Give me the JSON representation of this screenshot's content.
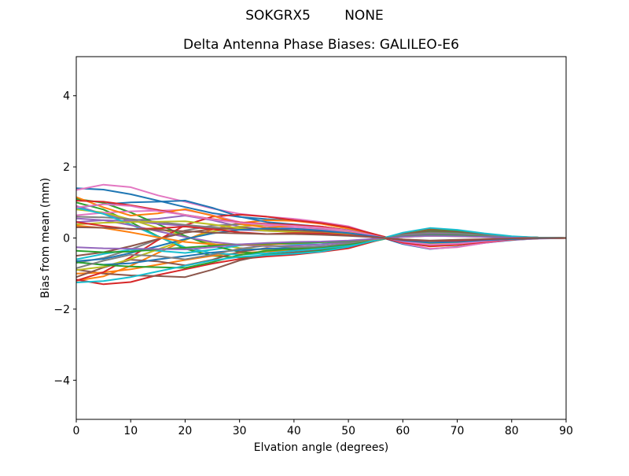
{
  "figure": {
    "suptitle": "SOKGRX5        NONE",
    "background": "#ffffff",
    "text_color": "#000000"
  },
  "chart_data": {
    "type": "line",
    "suptitle": "SOKGRX5        NONE",
    "title": "Delta Antenna Phase Biases: GALILEO-E6",
    "xlabel": "Elvation angle (degrees)",
    "ylabel": "Bias from mean (mm)",
    "xlim": [
      0,
      90
    ],
    "ylim": [
      -5.1,
      5.1
    ],
    "grid": false,
    "legend": "none",
    "x_ticks": [
      0,
      10,
      20,
      30,
      40,
      50,
      60,
      70,
      80,
      90
    ],
    "x_tick_labels": [
      "0",
      "10",
      "20",
      "30",
      "40",
      "50",
      "60",
      "70",
      "80",
      "90"
    ],
    "y_ticks": [
      -4,
      -2,
      0,
      2,
      4
    ],
    "y_tick_labels": [
      "−4",
      "−2",
      "0",
      "2",
      "4"
    ],
    "palette": [
      "#1f77b4",
      "#ff7f0e",
      "#2ca02c",
      "#d62728",
      "#9467bd",
      "#8c564b",
      "#e377c2",
      "#7f7f7f",
      "#bcbd22",
      "#17becf"
    ],
    "line_width": 2,
    "x": [
      0,
      5,
      10,
      15,
      20,
      25,
      30,
      35,
      40,
      45,
      50,
      55,
      60,
      65,
      70,
      75,
      80,
      85,
      90
    ],
    "series": [
      {
        "color": "#1f77b4",
        "values": [
          1.4,
          1.36,
          1.23,
          1.05,
          0.87,
          0.7,
          0.59,
          0.53,
          0.49,
          0.42,
          0.28,
          0.07,
          -0.17,
          -0.31,
          -0.25,
          -0.14,
          -0.06,
          -0.01,
          0.0
        ]
      },
      {
        "color": "#ff7f0e",
        "values": [
          -1.2,
          -1.08,
          -0.78,
          -0.42,
          -0.06,
          0.24,
          0.42,
          0.5,
          0.48,
          0.4,
          0.26,
          0.07,
          -0.12,
          -0.24,
          -0.2,
          -0.11,
          -0.05,
          -0.01,
          0.0
        ]
      },
      {
        "color": "#2ca02c",
        "values": [
          1.0,
          0.8,
          0.45,
          0.05,
          -0.3,
          -0.5,
          -0.55,
          -0.5,
          -0.42,
          -0.35,
          -0.25,
          -0.08,
          0.08,
          0.18,
          0.15,
          0.08,
          0.03,
          0.01,
          0.0
        ]
      },
      {
        "color": "#d62728",
        "values": [
          -1.17,
          -1.3,
          -1.24,
          -1.04,
          -0.88,
          -0.72,
          -0.59,
          -0.52,
          -0.47,
          -0.39,
          -0.29,
          -0.08,
          0.13,
          0.26,
          0.22,
          0.12,
          0.04,
          0.01,
          0.0
        ]
      },
      {
        "color": "#9467bd",
        "values": [
          0.9,
          0.68,
          0.5,
          0.54,
          0.63,
          0.5,
          0.32,
          0.23,
          0.27,
          0.25,
          0.16,
          0.04,
          -0.09,
          -0.16,
          -0.14,
          -0.07,
          -0.03,
          -0.01,
          0.0
        ]
      },
      {
        "color": "#8c564b",
        "values": [
          -0.89,
          -1.0,
          -1.05,
          -1.07,
          -1.1,
          -0.89,
          -0.63,
          -0.47,
          -0.4,
          -0.34,
          -0.23,
          -0.06,
          0.11,
          0.21,
          0.18,
          0.09,
          0.03,
          0.01,
          0.0
        ]
      },
      {
        "color": "#e377c2",
        "values": [
          1.35,
          1.5,
          1.43,
          1.2,
          1.02,
          0.83,
          0.68,
          0.6,
          0.54,
          0.45,
          0.33,
          0.09,
          -0.15,
          -0.3,
          -0.26,
          -0.14,
          -0.05,
          -0.02,
          0.0
        ]
      },
      {
        "color": "#7f7f7f",
        "values": [
          -0.7,
          -0.56,
          -0.32,
          -0.04,
          0.21,
          0.35,
          0.39,
          0.35,
          0.29,
          0.25,
          0.18,
          0.06,
          -0.06,
          -0.13,
          -0.11,
          -0.06,
          -0.02,
          -0.01,
          0.0
        ]
      },
      {
        "color": "#bcbd22",
        "values": [
          0.8,
          0.72,
          0.52,
          0.28,
          0.04,
          -0.16,
          -0.28,
          -0.34,
          -0.32,
          -0.26,
          -0.18,
          -0.05,
          0.08,
          0.16,
          0.14,
          0.07,
          0.03,
          0.01,
          0.0
        ]
      },
      {
        "color": "#17becf",
        "values": [
          -0.6,
          -0.45,
          -0.33,
          -0.36,
          -0.42,
          -0.33,
          -0.21,
          -0.15,
          -0.18,
          -0.17,
          -0.11,
          -0.02,
          0.06,
          0.11,
          0.09,
          0.05,
          0.02,
          0.01,
          0.0
        ]
      },
      {
        "color": "#1f77b4",
        "values": [
          0.85,
          0.95,
          1.0,
          1.02,
          1.05,
          0.85,
          0.6,
          0.45,
          0.38,
          0.32,
          0.22,
          0.06,
          -0.1,
          -0.2,
          -0.17,
          -0.09,
          -0.03,
          -0.01,
          0.0
        ]
      },
      {
        "color": "#ff7f0e",
        "values": [
          -1.0,
          -0.97,
          -0.88,
          -0.75,
          -0.62,
          -0.5,
          -0.42,
          -0.38,
          -0.35,
          -0.3,
          -0.2,
          -0.05,
          0.12,
          0.22,
          0.18,
          0.1,
          0.04,
          0.01,
          0.0
        ]
      },
      {
        "color": "#2ca02c",
        "values": [
          1.1,
          0.99,
          0.72,
          0.39,
          0.06,
          -0.22,
          -0.39,
          -0.46,
          -0.44,
          -0.36,
          -0.24,
          -0.07,
          0.11,
          0.22,
          0.19,
          0.1,
          0.04,
          0.01,
          0.0
        ]
      },
      {
        "color": "#d62728",
        "values": [
          -1.2,
          -0.96,
          -0.54,
          -0.06,
          0.36,
          0.6,
          0.66,
          0.6,
          0.5,
          0.42,
          0.3,
          0.1,
          -0.1,
          -0.22,
          -0.18,
          -0.1,
          -0.04,
          -0.01,
          0.0
        ]
      },
      {
        "color": "#9467bd",
        "values": [
          0.45,
          0.5,
          0.48,
          0.4,
          0.34,
          0.28,
          0.23,
          0.2,
          0.18,
          0.15,
          0.11,
          0.03,
          -0.05,
          -0.1,
          -0.09,
          -0.05,
          -0.02,
          -0.01,
          0.0
        ]
      },
      {
        "color": "#8c564b",
        "values": [
          -1.1,
          -0.83,
          -0.61,
          -0.66,
          -0.77,
          -0.61,
          -0.39,
          -0.28,
          -0.33,
          -0.31,
          -0.2,
          -0.04,
          0.11,
          0.2,
          0.17,
          0.09,
          0.03,
          0.01,
          0.0
        ]
      },
      {
        "color": "#e377c2",
        "values": [
          0.64,
          0.71,
          0.75,
          0.77,
          0.79,
          0.64,
          0.45,
          0.34,
          0.29,
          0.24,
          0.17,
          0.05,
          -0.08,
          -0.15,
          -0.13,
          -0.07,
          -0.02,
          -0.01,
          0.0
        ]
      },
      {
        "color": "#7f7f7f",
        "values": [
          0.6,
          0.58,
          0.53,
          0.45,
          0.37,
          0.3,
          0.25,
          0.23,
          0.21,
          0.18,
          0.12,
          0.03,
          -0.07,
          -0.13,
          -0.11,
          -0.06,
          -0.02,
          -0.01,
          0.0
        ]
      },
      {
        "color": "#bcbd22",
        "values": [
          -0.9,
          -0.81,
          -0.59,
          -0.32,
          -0.05,
          0.18,
          0.32,
          0.38,
          0.36,
          0.3,
          0.2,
          0.05,
          -0.09,
          -0.18,
          -0.15,
          -0.08,
          -0.04,
          -0.01,
          0.0
        ]
      },
      {
        "color": "#17becf",
        "values": [
          0.85,
          0.68,
          0.38,
          0.04,
          -0.26,
          -0.43,
          -0.47,
          -0.43,
          -0.36,
          -0.3,
          -0.21,
          -0.07,
          0.07,
          0.15,
          0.13,
          0.07,
          0.03,
          0.01,
          0.0
        ]
      },
      {
        "color": "#1f77b4",
        "values": [
          -0.68,
          -0.75,
          -0.71,
          -0.6,
          -0.51,
          -0.41,
          -0.34,
          -0.3,
          -0.27,
          -0.23,
          -0.17,
          -0.05,
          0.08,
          0.15,
          0.13,
          0.07,
          0.02,
          0.01,
          0.0
        ]
      },
      {
        "color": "#ff7f0e",
        "values": [
          1.15,
          0.86,
          0.63,
          0.69,
          0.81,
          0.63,
          0.4,
          0.29,
          0.35,
          0.32,
          0.21,
          0.05,
          -0.12,
          -0.21,
          -0.17,
          -0.09,
          -0.03,
          -0.01,
          0.0
        ]
      },
      {
        "color": "#2ca02c",
        "values": [
          -0.68,
          -0.76,
          -0.8,
          -0.82,
          -0.84,
          -0.68,
          -0.48,
          -0.36,
          -0.3,
          -0.26,
          -0.18,
          -0.05,
          0.08,
          0.16,
          0.14,
          0.07,
          0.02,
          0.01,
          0.0
        ]
      },
      {
        "color": "#d62728",
        "values": [
          1.05,
          1.02,
          0.92,
          0.79,
          0.65,
          0.53,
          0.44,
          0.4,
          0.37,
          0.32,
          0.21,
          0.05,
          -0.13,
          -0.23,
          -0.19,
          -0.11,
          -0.04,
          -0.01,
          0.0
        ]
      },
      {
        "color": "#9467bd",
        "values": [
          0.55,
          0.5,
          0.36,
          0.19,
          0.03,
          -0.11,
          -0.19,
          -0.23,
          -0.22,
          -0.18,
          -0.12,
          -0.03,
          0.06,
          0.11,
          0.09,
          0.05,
          0.02,
          0.01,
          0.0
        ]
      },
      {
        "color": "#8c564b",
        "values": [
          -0.5,
          -0.4,
          -0.23,
          -0.03,
          0.15,
          0.25,
          0.28,
          0.25,
          0.21,
          0.18,
          0.13,
          0.04,
          -0.04,
          -0.09,
          -0.08,
          -0.04,
          -0.02,
          -0.01,
          0.0
        ]
      },
      {
        "color": "#e377c2",
        "values": [
          0.86,
          0.95,
          0.9,
          0.76,
          0.65,
          0.52,
          0.43,
          0.38,
          0.34,
          0.29,
          0.21,
          0.06,
          -0.1,
          -0.19,
          -0.16,
          -0.09,
          -0.03,
          -0.01,
          0.0
        ]
      },
      {
        "color": "#7f7f7f",
        "values": [
          -0.85,
          -0.64,
          -0.47,
          -0.51,
          -0.6,
          -0.47,
          -0.3,
          -0.21,
          -0.26,
          -0.24,
          -0.15,
          -0.03,
          0.09,
          0.15,
          0.13,
          0.07,
          0.03,
          0.01,
          0.0
        ]
      },
      {
        "color": "#bcbd22",
        "values": [
          0.38,
          0.43,
          0.45,
          0.46,
          0.47,
          0.38,
          0.27,
          0.2,
          0.17,
          0.14,
          0.1,
          0.03,
          -0.05,
          -0.09,
          -0.08,
          -0.04,
          -0.01,
          0.0,
          0.0
        ]
      },
      {
        "color": "#17becf",
        "values": [
          -1.25,
          -1.21,
          -1.1,
          -0.94,
          -0.78,
          -0.63,
          -0.53,
          -0.48,
          -0.44,
          -0.38,
          -0.25,
          -0.06,
          0.15,
          0.28,
          0.23,
          0.13,
          0.05,
          0.01,
          0.0
        ]
      },
      {
        "color": "#1f77b4",
        "values": [
          -0.65,
          -0.59,
          -0.42,
          -0.23,
          -0.03,
          0.13,
          0.23,
          0.27,
          0.26,
          0.21,
          0.14,
          0.04,
          -0.07,
          -0.13,
          -0.11,
          -0.06,
          -0.03,
          -0.01,
          0.0
        ]
      },
      {
        "color": "#ff7f0e",
        "values": [
          0.35,
          0.28,
          0.16,
          0.02,
          -0.11,
          -0.18,
          -0.19,
          -0.18,
          -0.15,
          -0.12,
          -0.09,
          -0.03,
          0.03,
          0.06,
          0.05,
          0.03,
          0.01,
          0.0,
          0.0
        ]
      },
      {
        "color": "#2ca02c",
        "values": [
          -0.36,
          -0.4,
          -0.38,
          -0.32,
          -0.27,
          -0.22,
          -0.18,
          -0.16,
          -0.14,
          -0.12,
          -0.09,
          -0.02,
          0.04,
          0.08,
          0.07,
          0.04,
          0.01,
          0.0,
          0.0
        ]
      },
      {
        "color": "#d62728",
        "values": [
          0.45,
          0.34,
          0.25,
          0.27,
          0.32,
          0.25,
          0.16,
          0.11,
          0.14,
          0.13,
          0.08,
          0.02,
          -0.05,
          -0.08,
          -0.07,
          -0.04,
          -0.01,
          0.0,
          0.0
        ]
      },
      {
        "color": "#9467bd",
        "values": [
          -0.26,
          -0.29,
          -0.3,
          -0.31,
          -0.32,
          -0.26,
          -0.18,
          -0.14,
          -0.11,
          -0.1,
          -0.07,
          -0.02,
          0.03,
          0.06,
          0.05,
          0.03,
          0.01,
          0.0,
          0.0
        ]
      },
      {
        "color": "#8c564b",
        "values": [
          0.3,
          0.29,
          0.26,
          0.23,
          0.19,
          0.15,
          0.13,
          0.11,
          0.11,
          0.09,
          0.06,
          0.02,
          -0.04,
          -0.07,
          -0.05,
          -0.03,
          -0.01,
          0.0,
          0.0
        ]
      }
    ]
  }
}
